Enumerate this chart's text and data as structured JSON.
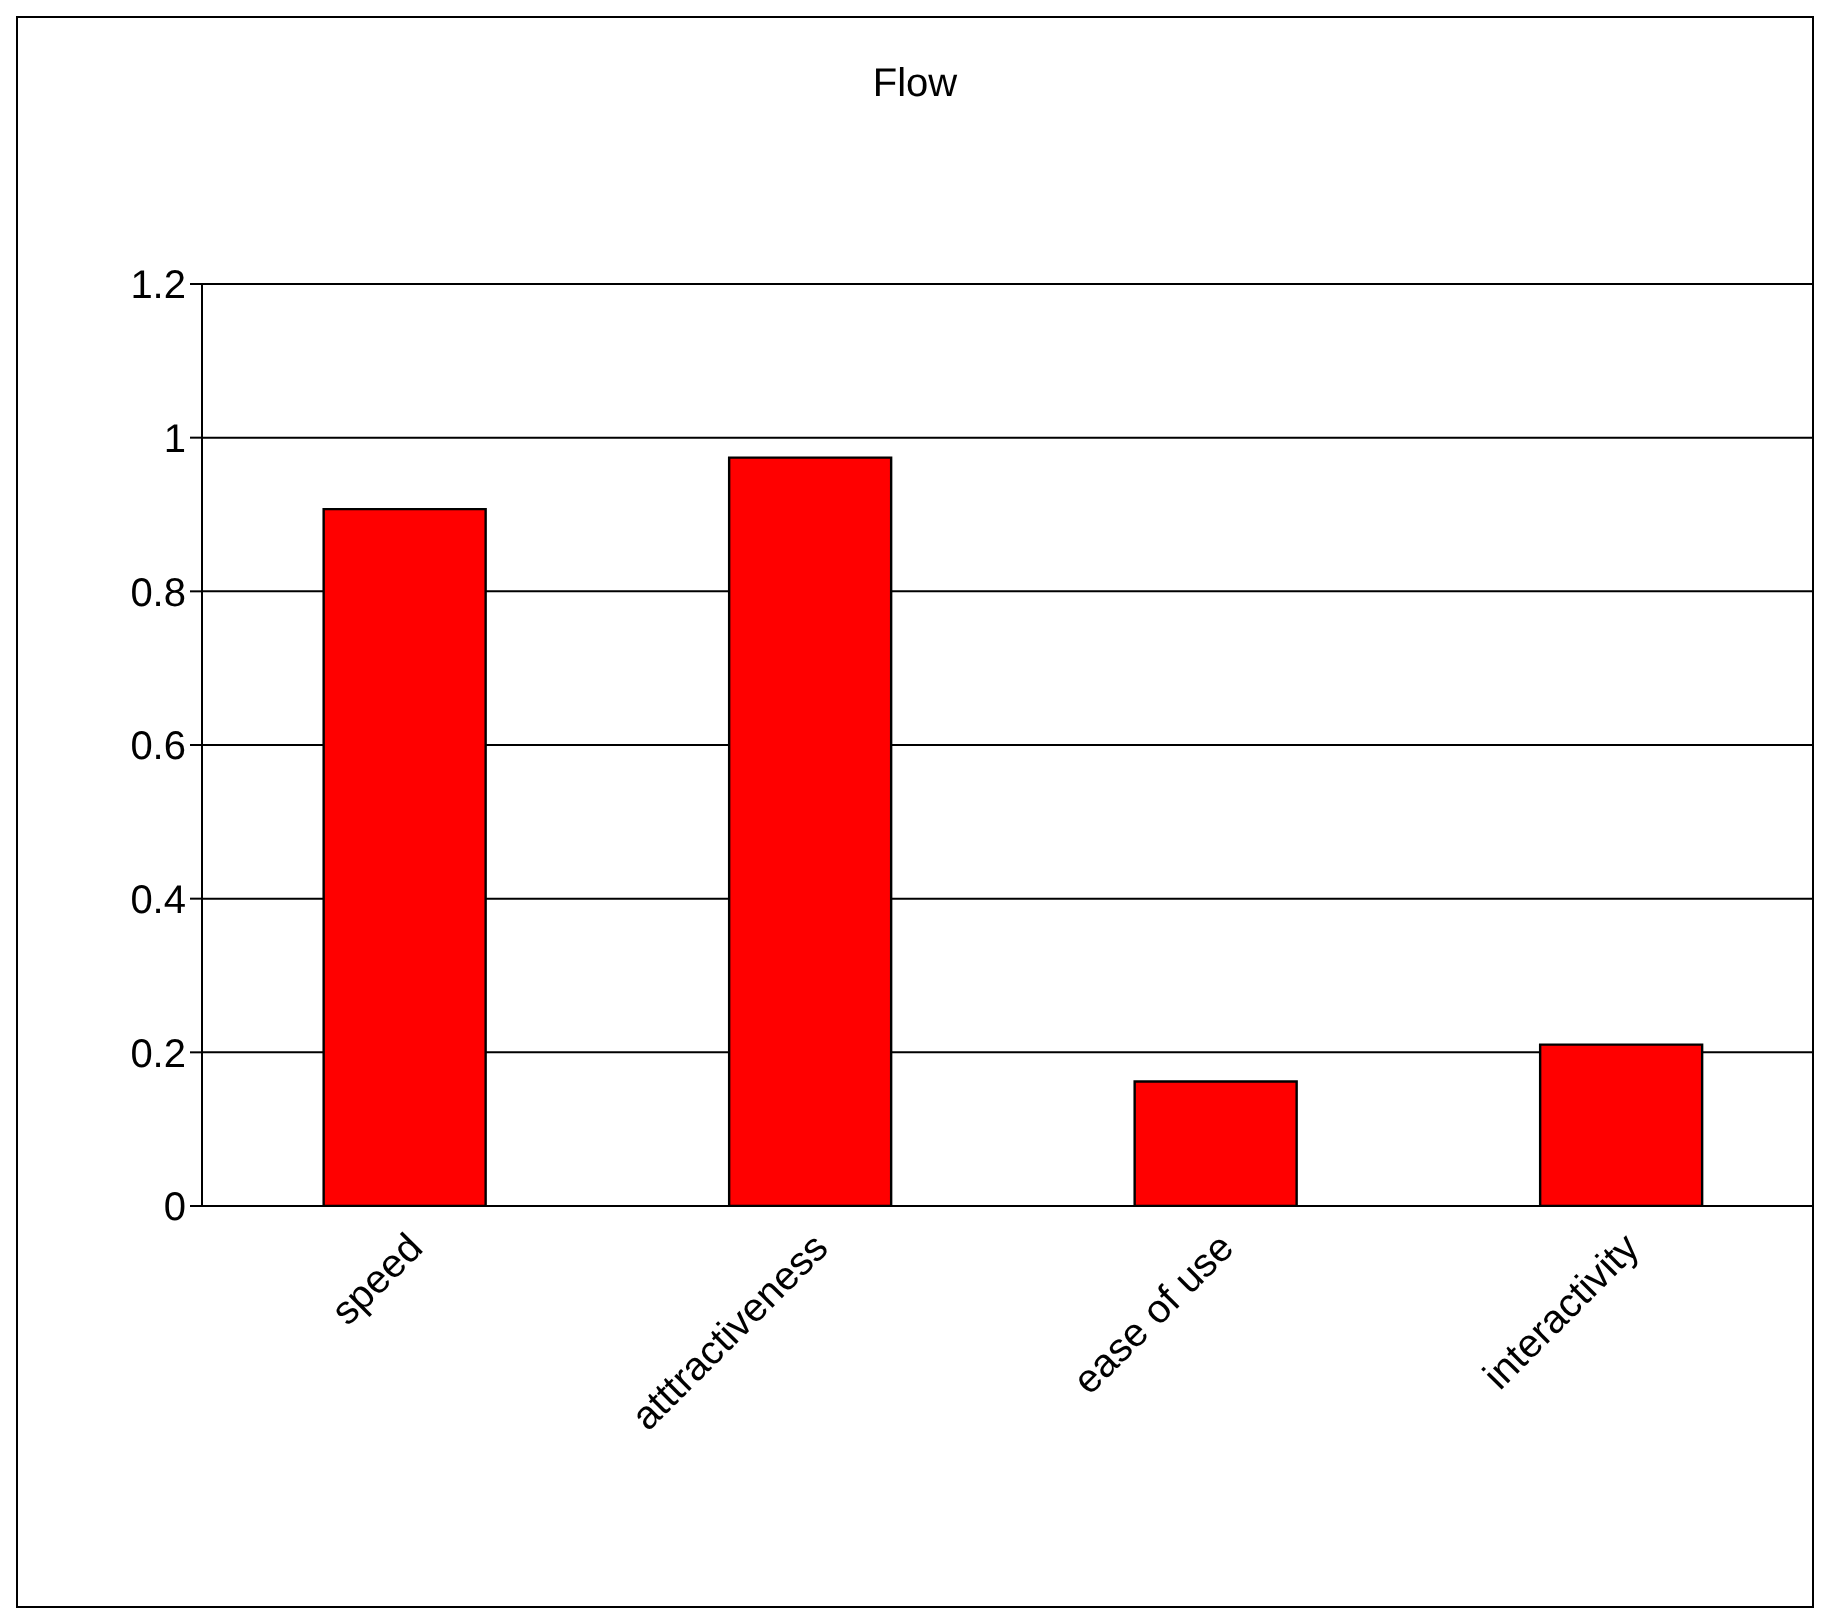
{
  "chart_data": {
    "type": "bar",
    "title": "Flow",
    "categories": [
      "speed",
      "atttractiveness",
      "ease of use",
      "interactivity"
    ],
    "values": [
      0.907,
      0.974,
      0.162,
      0.21
    ],
    "color": "#ff0000",
    "ylim": [
      0,
      1.2
    ],
    "yticks": [
      0,
      0.2,
      0.4,
      0.6,
      0.8,
      1,
      1.2
    ],
    "grid": "y",
    "legend": false
  }
}
